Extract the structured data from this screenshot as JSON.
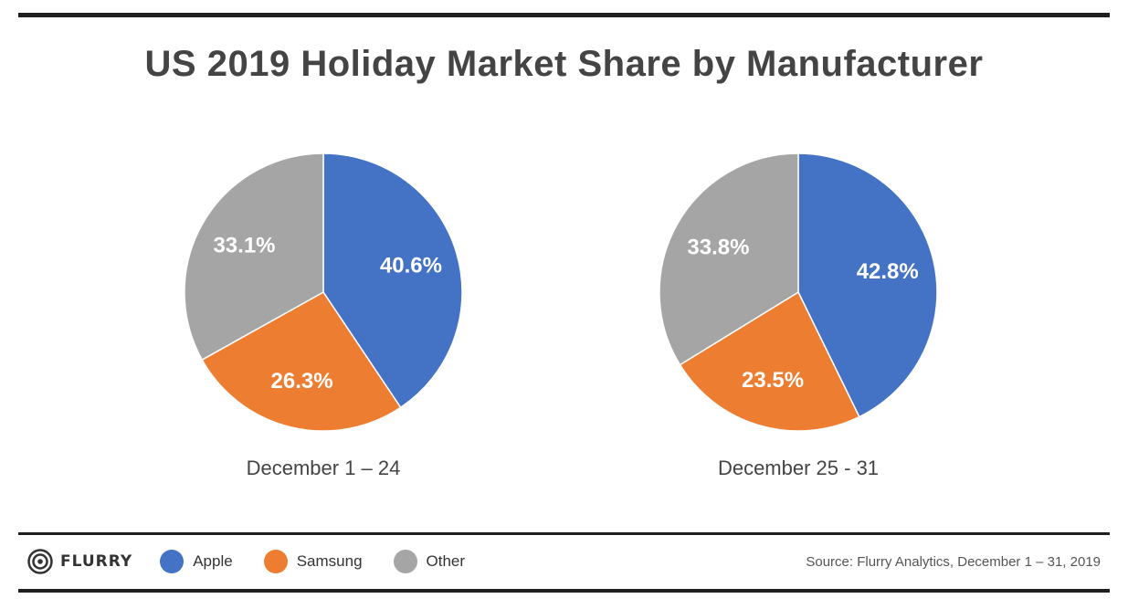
{
  "title": "US 2019 Holiday Market Share by Manufacturer",
  "chart_data": [
    {
      "type": "pie",
      "caption": "December 1 – 24",
      "slices": [
        {
          "name": "Apple",
          "value": 40.6,
          "label": "40.6%",
          "color": "#4472c4"
        },
        {
          "name": "Samsung",
          "value": 26.3,
          "label": "26.3%",
          "color": "#ed7d31"
        },
        {
          "name": "Other",
          "value": 33.1,
          "label": "33.1%",
          "color": "#a5a5a5"
        }
      ]
    },
    {
      "type": "pie",
      "caption": "December 25 - 31",
      "slices": [
        {
          "name": "Apple",
          "value": 42.8,
          "label": "42.8%",
          "color": "#4472c4"
        },
        {
          "name": "Samsung",
          "value": 23.5,
          "label": "23.5%",
          "color": "#ed7d31"
        },
        {
          "name": "Other",
          "value": 33.8,
          "label": "33.8%",
          "color": "#a5a5a5"
        }
      ]
    }
  ],
  "footer": {
    "brand": "FLURRY",
    "brand_icon": "flurry-logo-icon",
    "legend": [
      {
        "label": "Apple",
        "color": "#4472c4"
      },
      {
        "label": "Samsung",
        "color": "#ed7d31"
      },
      {
        "label": "Other",
        "color": "#a5a5a5"
      }
    ],
    "source": "Source: Flurry Analytics, December 1 – 31, 2019"
  }
}
